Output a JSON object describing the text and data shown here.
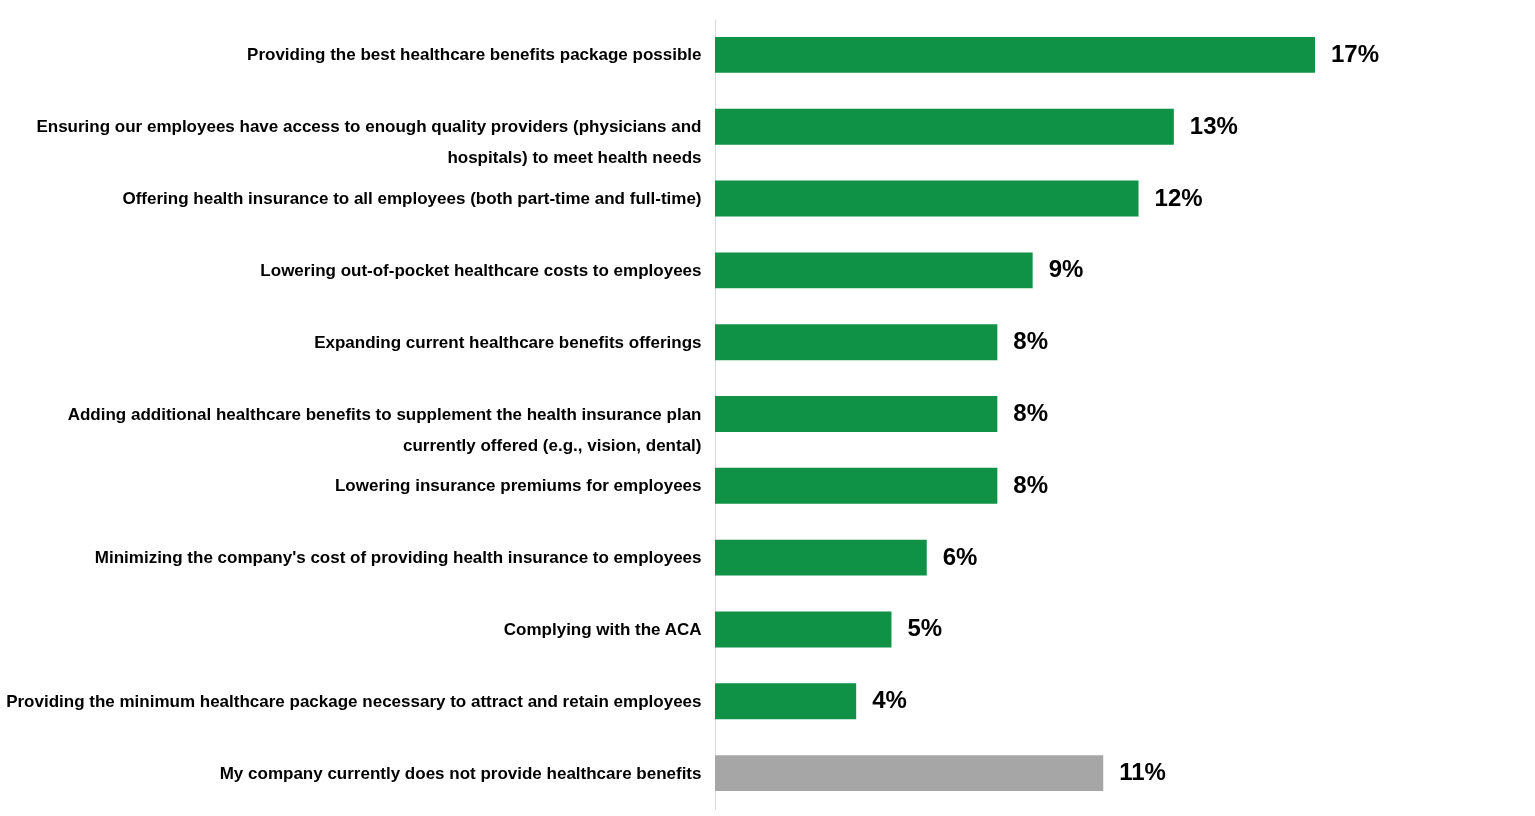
{
  "chart_data": {
    "type": "bar",
    "orientation": "horizontal",
    "categories": [
      "Providing the best healthcare benefits package possible",
      "Ensuring our employees have access to enough quality providers (physicians and hospitals) to meet health needs",
      "Offering health insurance to all employees (both part-time and full-time)",
      "Lowering out-of-pocket healthcare costs to employees",
      "Expanding current healthcare benefits offerings",
      "Adding additional healthcare benefits to supplement the health insurance plan currently offered (e.g., vision, dental)",
      "Lowering insurance premiums for employees",
      "Minimizing the company's cost of providing health insurance to employees",
      "Complying with the ACA",
      "Providing the minimum healthcare package necessary to attract and retain employees",
      "My company currently does not provide healthcare benefits"
    ],
    "values": [
      17,
      13,
      12,
      9,
      8,
      8,
      8,
      6,
      5,
      4,
      11
    ],
    "value_labels": [
      "17%",
      "13%",
      "12%",
      "9%",
      "8%",
      "8%",
      "8%",
      "6%",
      "5%",
      "4%",
      "11%"
    ],
    "colors": [
      "#0f9146",
      "#0f9146",
      "#0f9146",
      "#0f9146",
      "#0f9146",
      "#0f9146",
      "#0f9146",
      "#0f9146",
      "#0f9146",
      "#0f9146",
      "#a6a6a6"
    ],
    "tick_labels": "y"
  }
}
